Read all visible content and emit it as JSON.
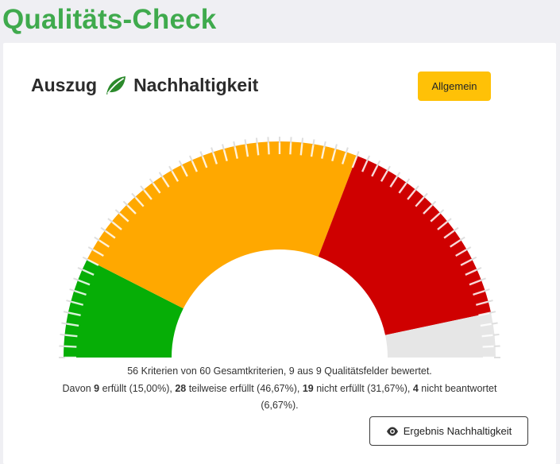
{
  "header": {
    "title": "Qualitäts-Check"
  },
  "card": {
    "title_prefix": "Auszug",
    "title_icon": "leaf-icon",
    "title_suffix": "Nachhaltigkeit",
    "general_button_label": "Allgemein",
    "result_button_label": "Ergebnis Nachhaltigkeit",
    "result_button_icon": "eye-icon"
  },
  "summary": {
    "line1": "56 Kriterien von 60 Gesamtkriterien, 9 aus 9 Qualitätsfelder bewertet.",
    "davon": "Davon",
    "fulfilled_count": "9",
    "fulfilled_text": "erfüllt (15,00%),",
    "partial_count": "28",
    "partial_text": "teilweise erfüllt (46,67%),",
    "not_count": "19",
    "not_text": "nicht erfüllt (31,67%),",
    "unanswered_count": "4",
    "unanswered_text": "nicht beantwortet",
    "unanswered_pct": "(6,67%)."
  },
  "chart_data": {
    "type": "gauge",
    "categories": [
      "erfüllt",
      "teilweise erfüllt",
      "nicht erfüllt",
      "nicht beantwortet"
    ],
    "values": [
      9,
      28,
      19,
      4
    ],
    "total": 60,
    "colors": [
      "#06ae06",
      "#ffa800",
      "#cf0000",
      "#e6e6e6"
    ]
  },
  "colors": {
    "accent_green": "#3faa4d",
    "button_yellow": "#ffc107",
    "leaf_green": "#2c8a2c"
  }
}
